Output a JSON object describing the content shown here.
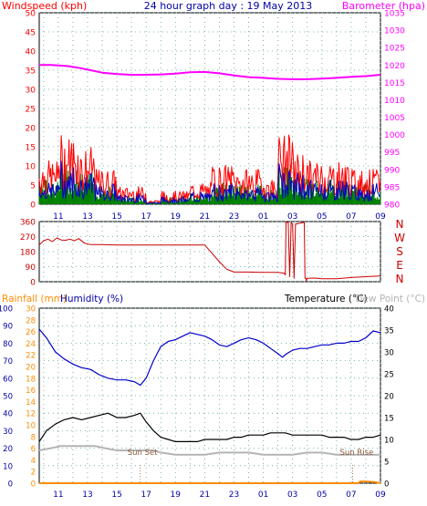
{
  "chart_data": [
    {
      "type": "line",
      "panel": "wind",
      "title": "24 hour graph day : 19 May 2013",
      "left_axis_title": "Windspeed (kph)",
      "right_axis_title": "Barometer (hpa)",
      "x_tick_labels": [
        "11",
        "13",
        "15",
        "17",
        "19",
        "21",
        "23",
        "01",
        "03",
        "05",
        "07",
        "09"
      ],
      "left_ticks": [
        0,
        5,
        10,
        15,
        20,
        25,
        30,
        35,
        40,
        45,
        50
      ],
      "right_ticks": [
        980,
        985,
        990,
        995,
        1000,
        1005,
        1010,
        1015,
        1020,
        1025,
        1030,
        1035
      ],
      "left_ylim": [
        0,
        50
      ],
      "right_ylim": [
        980,
        1035
      ],
      "grid": true,
      "colors": {
        "gust": "#ff0000",
        "average": "#0000cc",
        "wind_direction_bars": "#008000",
        "barometer": "#ff00ff"
      },
      "series": [
        {
          "axis": "right",
          "x": [
            9.7,
            10.5,
            11.2,
            11.8,
            12.5,
            13.2,
            14.0,
            15.0,
            16.0,
            17.0,
            18.0,
            19.0,
            20.0,
            21.0,
            22.0,
            23.0,
            24.0,
            25.0,
            26.0,
            27.0,
            28.0,
            29.0,
            30.0,
            31.0,
            32.0,
            33.0
          ],
          "values": [
            1020.0,
            1020.0,
            1019.8,
            1019.6,
            1019.1,
            1018.5,
            1017.8,
            1017.4,
            1017.2,
            1017.2,
            1017.3,
            1017.5,
            1017.9,
            1018.0,
            1017.6,
            1017.0,
            1016.5,
            1016.3,
            1016.0,
            1015.9,
            1015.9,
            1016.1,
            1016.3,
            1016.6,
            1016.8,
            1017.2
          ]
        }
      ]
    },
    {
      "type": "line",
      "panel": "direction",
      "ticks": [
        0,
        90,
        180,
        270,
        360
      ],
      "ylim": [
        0,
        360
      ],
      "compass_labels": [
        "N",
        "W",
        "S",
        "E",
        "N"
      ],
      "grid": true,
      "colors": {
        "direction": "#cc0000"
      },
      "series": [
        {
          "x": [
            9.7,
            10.0,
            10.3,
            10.6,
            10.9,
            11.2,
            11.5,
            11.8,
            12.1,
            12.4,
            12.8,
            13.2,
            14.0,
            15.0,
            16.0,
            17.0,
            18.0,
            19.0,
            20.0,
            21.0,
            21.5,
            22.0,
            22.5,
            23.0,
            24.0,
            25.0,
            26.0,
            26.45,
            26.5,
            26.55,
            26.7,
            26.8,
            26.9,
            27.0,
            27.1,
            27.2,
            27.8,
            27.85,
            27.9,
            27.95,
            28.0,
            28.5,
            29.0,
            30.0,
            31.0,
            32.0,
            33.0
          ],
          "values": [
            220,
            245,
            255,
            240,
            262,
            250,
            248,
            255,
            245,
            258,
            230,
            222,
            222,
            220,
            220,
            220,
            220,
            220,
            220,
            220,
            170,
            120,
            75,
            58,
            58,
            56,
            56,
            50,
            40,
            355,
            355,
            30,
            355,
            345,
            20,
            345,
            355,
            20,
            20,
            5,
            20,
            22,
            18,
            18,
            25,
            30,
            35
          ]
        }
      ]
    },
    {
      "type": "line",
      "panel": "temperature",
      "left_axis_titles": [
        "Rainfall (mm)",
        "Humidity (%)"
      ],
      "right_axis_titles": [
        "Temperature (°C)",
        "Dew Point (°C)"
      ],
      "humidity_ticks": [
        0,
        10,
        20,
        30,
        40,
        50,
        60,
        70,
        80,
        90,
        100
      ],
      "rain_ticks": [
        0,
        2,
        4,
        6,
        8,
        10,
        12,
        14,
        16,
        18,
        20,
        22,
        24,
        26,
        28,
        30
      ],
      "temperature_ticks": [
        0,
        5,
        10,
        15,
        20,
        25,
        30,
        35,
        40
      ],
      "humidity_ylim": [
        0,
        100
      ],
      "rain_ylim": [
        0,
        30
      ],
      "temperature_ylim": [
        0,
        40
      ],
      "x_tick_labels": [
        "11",
        "13",
        "15",
        "17",
        "19",
        "21",
        "23",
        "01",
        "03",
        "05",
        "07",
        "09"
      ],
      "annotations": [
        {
          "text": "Sun Set",
          "x": 16.6
        },
        {
          "text": "Sun Rise",
          "x": 31.1
        }
      ],
      "grid": true,
      "colors": {
        "humidity": "#0000cc",
        "temperature": "#000000",
        "dew_point": "#b4b4b4",
        "rainfall": "#ff8c00"
      },
      "series": [
        {
          "axis": "humidity",
          "x": [
            9.7,
            10.2,
            10.8,
            11.4,
            12.0,
            12.6,
            13.2,
            13.8,
            14.4,
            15.0,
            15.6,
            16.2,
            16.6,
            17.0,
            17.5,
            18.0,
            18.5,
            19.0,
            19.5,
            20.0,
            20.5,
            21.0,
            21.5,
            22.0,
            22.5,
            23.0,
            23.5,
            24.0,
            24.5,
            25.0,
            25.5,
            26.0,
            26.3,
            26.6,
            27.0,
            27.5,
            28.0,
            28.5,
            29.0,
            29.5,
            30.0,
            30.5,
            31.0,
            31.5,
            32.0,
            32.5,
            33.0
          ],
          "values": [
            88,
            83,
            75,
            71,
            68,
            66,
            65,
            62,
            60,
            59,
            59,
            58,
            56,
            60,
            70,
            78,
            81,
            82,
            84,
            86,
            85,
            84,
            82,
            79,
            78,
            80,
            82,
            83,
            82,
            80,
            77,
            74,
            72,
            74,
            76,
            77,
            77,
            78,
            79,
            79,
            80,
            80,
            81,
            81,
            83,
            87,
            86
          ]
        },
        {
          "axis": "temperature",
          "x": [
            9.7,
            10.2,
            10.8,
            11.4,
            12.0,
            12.6,
            13.2,
            13.8,
            14.4,
            15.0,
            15.6,
            16.2,
            16.6,
            17.0,
            17.5,
            18.0,
            18.5,
            19.0,
            19.5,
            20.0,
            20.5,
            21.0,
            21.5,
            22.0,
            22.5,
            23.0,
            23.5,
            24.0,
            24.5,
            25.0,
            25.5,
            26.0,
            26.5,
            27.0,
            27.5,
            28.0,
            28.5,
            29.0,
            29.5,
            30.0,
            30.5,
            31.0,
            31.5,
            32.0,
            32.5,
            33.0
          ],
          "values": [
            9.5,
            12,
            13.5,
            14.5,
            15,
            14.5,
            15,
            15.5,
            16,
            15,
            15,
            15.5,
            16,
            14,
            12,
            10.5,
            10,
            9.5,
            9.5,
            9.5,
            9.5,
            10,
            10,
            10,
            10,
            10.5,
            10.5,
            11,
            11,
            11,
            11.5,
            11.5,
            11.5,
            11,
            11,
            11,
            11,
            11,
            10.5,
            10.5,
            10.5,
            10,
            10,
            10.5,
            10.5,
            11
          ]
        },
        {
          "axis": "temperature",
          "x": [
            9.7,
            10.5,
            11.2,
            12.0,
            12.8,
            13.5,
            14.2,
            15.0,
            15.8,
            16.5,
            17.0,
            17.5,
            18.0,
            19.0,
            20.0,
            21.0,
            22.0,
            23.0,
            24.0,
            25.0,
            26.0,
            27.0,
            28.0,
            29.0,
            30.0,
            31.0,
            32.0,
            33.0
          ],
          "values": [
            7.5,
            8,
            8.5,
            8.5,
            8.5,
            8.5,
            8,
            7.5,
            7.5,
            7.5,
            7.5,
            7.5,
            7,
            6.5,
            6.5,
            6.5,
            7,
            7,
            7,
            6.5,
            6.5,
            6.5,
            7,
            7,
            6.5,
            6.5,
            6.5,
            6.5
          ]
        },
        {
          "axis": "rain",
          "x": [
            9.7,
            31.5,
            31.6,
            32.0,
            32.6,
            33.0
          ],
          "values": [
            0,
            0,
            0.3,
            0.3,
            0.2,
            0
          ]
        }
      ]
    }
  ]
}
